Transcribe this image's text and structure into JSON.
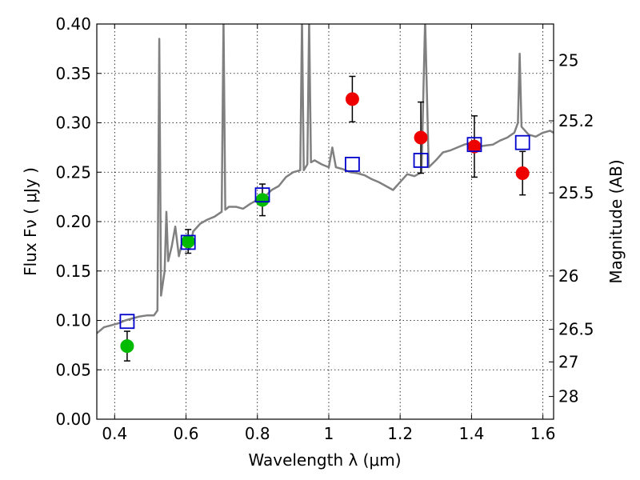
{
  "chart_data": {
    "type": "scatter",
    "title": "",
    "xlabel": "Wavelength  λ (μm)",
    "ylabel": "Flux  Fν  ( μJy )",
    "y2label": "Magnitude (AB)",
    "xlim": [
      0.35,
      1.63
    ],
    "ylim": [
      0.0,
      0.4
    ],
    "grid": true,
    "x_ticks": [
      0.4,
      0.6,
      0.8,
      1.0,
      1.2,
      1.4,
      1.6
    ],
    "x_tick_labels": [
      "0.4",
      "0.6",
      "0.8",
      "1",
      "1.2",
      "1.4",
      "1.6"
    ],
    "y_ticks": [
      0.0,
      0.05,
      0.1,
      0.15,
      0.2,
      0.25,
      0.3,
      0.35,
      0.4
    ],
    "y_tick_labels": [
      "0.00",
      "0.05",
      "0.10",
      "0.15",
      "0.20",
      "0.25",
      "0.30",
      "0.35",
      "0.40"
    ],
    "mag_ticks": [
      {
        "flux": 0.363,
        "label": "25"
      },
      {
        "flux": 0.302,
        "label": "25.2"
      },
      {
        "flux": 0.229,
        "label": "25.5"
      },
      {
        "flux": 0.145,
        "label": "26"
      },
      {
        "flux": 0.091,
        "label": "26.5"
      },
      {
        "flux": 0.058,
        "label": "27"
      },
      {
        "flux": 0.023,
        "label": "28"
      }
    ],
    "series": [
      {
        "kind": "line",
        "color": "#808080",
        "points": [
          [
            0.35,
            0.087
          ],
          [
            0.37,
            0.093
          ],
          [
            0.39,
            0.095
          ],
          [
            0.41,
            0.097
          ],
          [
            0.43,
            0.1
          ],
          [
            0.45,
            0.102
          ],
          [
            0.47,
            0.104
          ],
          [
            0.49,
            0.105
          ],
          [
            0.51,
            0.105
          ],
          [
            0.52,
            0.11
          ],
          [
            0.525,
            0.385
          ],
          [
            0.53,
            0.125
          ],
          [
            0.54,
            0.15
          ],
          [
            0.545,
            0.21
          ],
          [
            0.55,
            0.16
          ],
          [
            0.56,
            0.175
          ],
          [
            0.57,
            0.195
          ],
          [
            0.58,
            0.165
          ],
          [
            0.59,
            0.18
          ],
          [
            0.6,
            0.178
          ],
          [
            0.61,
            0.172
          ],
          [
            0.62,
            0.19
          ],
          [
            0.64,
            0.198
          ],
          [
            0.66,
            0.202
          ],
          [
            0.68,
            0.205
          ],
          [
            0.7,
            0.21
          ],
          [
            0.705,
            0.405
          ],
          [
            0.71,
            0.212
          ],
          [
            0.72,
            0.215
          ],
          [
            0.74,
            0.215
          ],
          [
            0.76,
            0.213
          ],
          [
            0.78,
            0.218
          ],
          [
            0.8,
            0.222
          ],
          [
            0.82,
            0.225
          ],
          [
            0.84,
            0.232
          ],
          [
            0.86,
            0.236
          ],
          [
            0.88,
            0.245
          ],
          [
            0.9,
            0.25
          ],
          [
            0.92,
            0.252
          ],
          [
            0.925,
            0.405
          ],
          [
            0.93,
            0.252
          ],
          [
            0.94,
            0.258
          ],
          [
            0.945,
            0.405
          ],
          [
            0.95,
            0.26
          ],
          [
            0.96,
            0.262
          ],
          [
            0.98,
            0.258
          ],
          [
            1.0,
            0.255
          ],
          [
            1.01,
            0.275
          ],
          [
            1.02,
            0.255
          ],
          [
            1.04,
            0.253
          ],
          [
            1.06,
            0.25
          ],
          [
            1.08,
            0.249
          ],
          [
            1.1,
            0.247
          ],
          [
            1.12,
            0.243
          ],
          [
            1.14,
            0.24
          ],
          [
            1.16,
            0.236
          ],
          [
            1.18,
            0.232
          ],
          [
            1.2,
            0.24
          ],
          [
            1.22,
            0.248
          ],
          [
            1.24,
            0.246
          ],
          [
            1.26,
            0.25
          ],
          [
            1.27,
            0.405
          ],
          [
            1.28,
            0.255
          ],
          [
            1.3,
            0.262
          ],
          [
            1.32,
            0.27
          ],
          [
            1.34,
            0.272
          ],
          [
            1.36,
            0.275
          ],
          [
            1.38,
            0.278
          ],
          [
            1.4,
            0.28
          ],
          [
            1.42,
            0.276
          ],
          [
            1.44,
            0.277
          ],
          [
            1.46,
            0.278
          ],
          [
            1.48,
            0.282
          ],
          [
            1.5,
            0.285
          ],
          [
            1.52,
            0.29
          ],
          [
            1.53,
            0.3
          ],
          [
            1.535,
            0.37
          ],
          [
            1.54,
            0.296
          ],
          [
            1.56,
            0.288
          ],
          [
            1.58,
            0.286
          ],
          [
            1.6,
            0.29
          ],
          [
            1.62,
            0.292
          ],
          [
            1.63,
            0.29
          ]
        ]
      },
      {
        "kind": "points",
        "marker": "circle",
        "color": "#00bb00",
        "points": [
          {
            "x": 0.435,
            "y": 0.074,
            "err": 0.015
          },
          {
            "x": 0.606,
            "y": 0.18,
            "err": 0.012
          },
          {
            "x": 0.814,
            "y": 0.222,
            "err": 0.016
          }
        ]
      },
      {
        "kind": "points",
        "marker": "circle",
        "color": "#ee0000",
        "points": [
          {
            "x": 1.066,
            "y": 0.324,
            "err": 0.023
          },
          {
            "x": 1.258,
            "y": 0.285,
            "err": 0.036
          },
          {
            "x": 1.408,
            "y": 0.276,
            "err": 0.031
          },
          {
            "x": 1.543,
            "y": 0.249,
            "err": 0.022
          }
        ]
      },
      {
        "kind": "points",
        "marker": "square",
        "color": "#0000cc",
        "points": [
          {
            "x": 0.435,
            "y": 0.099
          },
          {
            "x": 0.606,
            "y": 0.179
          },
          {
            "x": 0.814,
            "y": 0.227
          },
          {
            "x": 1.066,
            "y": 0.258
          },
          {
            "x": 1.258,
            "y": 0.262
          },
          {
            "x": 1.408,
            "y": 0.278
          },
          {
            "x": 1.543,
            "y": 0.28
          }
        ]
      }
    ]
  }
}
